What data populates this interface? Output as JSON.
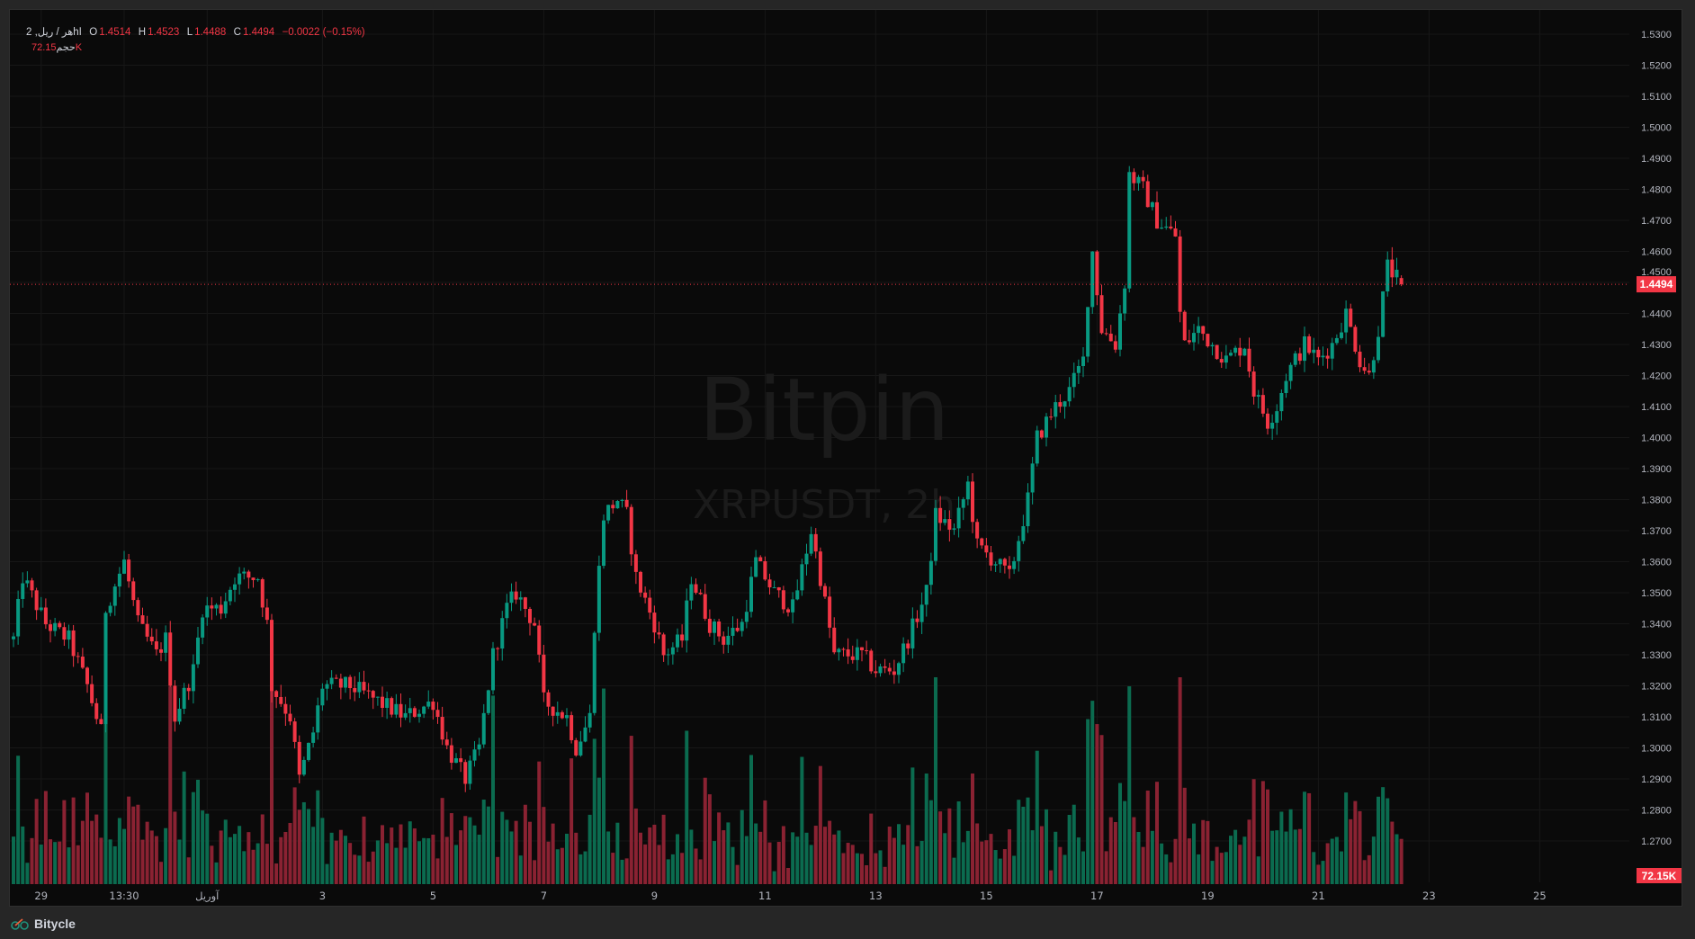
{
  "header": {
    "symbol_interval": "2 ,هر / ریلhا",
    "open_label": "O",
    "open": "1.4514",
    "high_label": "H",
    "high": "1.4523",
    "low_label": "L",
    "low": "1.4488",
    "close_label": "C",
    "close": "1.4494",
    "change": "−0.0022 (−0.15%)",
    "volume_label": "حجم",
    "volume": "72.15K"
  },
  "watermark": {
    "brand": "Bitpin",
    "symbol": "XRPUSDT, 2h"
  },
  "footer": {
    "brand": "Bitycle"
  },
  "colors": {
    "up": "#089981",
    "down": "#f23645",
    "vol_up": "#0b6b4f",
    "vol_down": "#8a2232",
    "bg": "#0a0a0a"
  },
  "chart_data": {
    "type": "candlestick",
    "symbol": "XRPUSDT",
    "interval": "2h",
    "ylim": [
      1.26,
      1.535
    ],
    "y_ticks": [
      "1.5300",
      "1.5200",
      "1.5100",
      "1.5000",
      "1.4900",
      "1.4800",
      "1.4700",
      "1.4600",
      "1.4500",
      "1.4400",
      "1.4300",
      "1.4200",
      "1.4100",
      "1.4000",
      "1.3900",
      "1.3800",
      "1.3700",
      "1.3600",
      "1.3500",
      "1.3400",
      "1.3300",
      "1.3200",
      "1.3100",
      "1.3000",
      "1.2900",
      "1.2800",
      "1.2700"
    ],
    "x_ticks": [
      {
        "label": "29",
        "candle": 6
      },
      {
        "label": "13:30",
        "candle": 24
      },
      {
        "label": "آوریل",
        "candle": 42
      },
      {
        "label": "3",
        "candle": 67
      },
      {
        "label": "5",
        "candle": 91
      },
      {
        "label": "7",
        "candle": 115
      },
      {
        "label": "9",
        "candle": 139
      },
      {
        "label": "11",
        "candle": 163
      },
      {
        "label": "13",
        "candle": 187
      },
      {
        "label": "15",
        "candle": 211
      },
      {
        "label": "17",
        "candle": 235
      },
      {
        "label": "19",
        "candle": 259
      },
      {
        "label": "21",
        "candle": 283
      },
      {
        "label": "23",
        "candle": 307
      },
      {
        "label": "25",
        "candle": 331
      }
    ],
    "last_price": "1.4494",
    "last_volume": "72.15K",
    "last_candle": {
      "o": 1.4514,
      "h": 1.4523,
      "l": 1.4488,
      "c": 1.4494
    },
    "close_anchors": [
      [
        0,
        1.335
      ],
      [
        2,
        1.355
      ],
      [
        7,
        1.34
      ],
      [
        12,
        1.335
      ],
      [
        16,
        1.32
      ],
      [
        19,
        1.305
      ],
      [
        20,
        1.345
      ],
      [
        24,
        1.36
      ],
      [
        27,
        1.34
      ],
      [
        31,
        1.33
      ],
      [
        33,
        1.335
      ],
      [
        35,
        1.31
      ],
      [
        39,
        1.325
      ],
      [
        41,
        1.345
      ],
      [
        45,
        1.345
      ],
      [
        48,
        1.355
      ],
      [
        53,
        1.355
      ],
      [
        55,
        1.34
      ],
      [
        56,
        1.32
      ],
      [
        60,
        1.31
      ],
      [
        62,
        1.29
      ],
      [
        65,
        1.305
      ],
      [
        67,
        1.32
      ],
      [
        73,
        1.32
      ],
      [
        79,
        1.315
      ],
      [
        85,
        1.31
      ],
      [
        91,
        1.315
      ],
      [
        94,
        1.3
      ],
      [
        98,
        1.29
      ],
      [
        101,
        1.3
      ],
      [
        104,
        1.33
      ],
      [
        107,
        1.345
      ],
      [
        109,
        1.35
      ],
      [
        113,
        1.34
      ],
      [
        115,
        1.315
      ],
      [
        120,
        1.31
      ],
      [
        122,
        1.3
      ],
      [
        125,
        1.31
      ],
      [
        126,
        1.34
      ],
      [
        128,
        1.375
      ],
      [
        131,
        1.38
      ],
      [
        133,
        1.375
      ],
      [
        135,
        1.355
      ],
      [
        139,
        1.34
      ],
      [
        141,
        1.33
      ],
      [
        145,
        1.335
      ],
      [
        147,
        1.355
      ],
      [
        151,
        1.34
      ],
      [
        154,
        1.335
      ],
      [
        158,
        1.34
      ],
      [
        161,
        1.36
      ],
      [
        165,
        1.35
      ],
      [
        169,
        1.345
      ],
      [
        173,
        1.37
      ],
      [
        175,
        1.355
      ],
      [
        178,
        1.33
      ],
      [
        184,
        1.33
      ],
      [
        187,
        1.325
      ],
      [
        191,
        1.325
      ],
      [
        194,
        1.335
      ],
      [
        198,
        1.35
      ],
      [
        200,
        1.375
      ],
      [
        204,
        1.37
      ],
      [
        207,
        1.385
      ],
      [
        209,
        1.365
      ],
      [
        213,
        1.36
      ],
      [
        216,
        1.355
      ],
      [
        220,
        1.38
      ],
      [
        222,
        1.4
      ],
      [
        226,
        1.41
      ],
      [
        229,
        1.415
      ],
      [
        232,
        1.425
      ],
      [
        233,
        1.445
      ],
      [
        234,
        1.46
      ],
      [
        236,
        1.435
      ],
      [
        239,
        1.43
      ],
      [
        241,
        1.45
      ],
      [
        242,
        1.485
      ],
      [
        245,
        1.48
      ],
      [
        248,
        1.47
      ],
      [
        252,
        1.465
      ],
      [
        253,
        1.44
      ],
      [
        254,
        1.43
      ],
      [
        257,
        1.435
      ],
      [
        260,
        1.43
      ],
      [
        263,
        1.425
      ],
      [
        267,
        1.43
      ],
      [
        269,
        1.415
      ],
      [
        272,
        1.405
      ],
      [
        274,
        1.41
      ],
      [
        276,
        1.42
      ],
      [
        280,
        1.43
      ],
      [
        283,
        1.425
      ],
      [
        286,
        1.43
      ],
      [
        289,
        1.44
      ],
      [
        292,
        1.425
      ],
      [
        294,
        1.42
      ],
      [
        296,
        1.435
      ],
      [
        298,
        1.455
      ],
      [
        301,
        1.4494
      ]
    ]
  }
}
